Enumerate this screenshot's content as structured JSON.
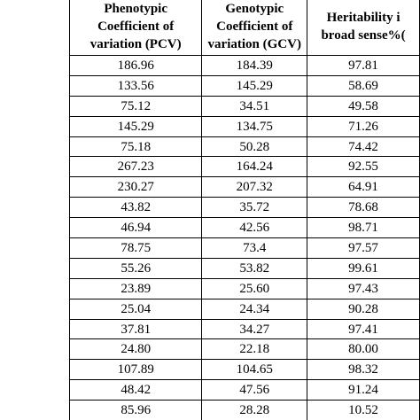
{
  "table": {
    "header": [
      [
        "Phenotypic",
        "Coefficient of",
        "variation (PCV)"
      ],
      [
        "Genotypic",
        "Coefficient of",
        "variation (GCV)"
      ],
      [
        "Heritability i",
        "broad sense%("
      ]
    ],
    "rows": [
      [
        "186.96",
        "184.39",
        "97.81"
      ],
      [
        "133.56",
        "145.29",
        "58.69"
      ],
      [
        "75.12",
        "34.51",
        "49.58"
      ],
      [
        "145.29",
        "134.75",
        "71.26"
      ],
      [
        "75.18",
        "50.28",
        "74.42"
      ],
      [
        "267.23",
        "164.24",
        "92.55"
      ],
      [
        "230.27",
        "207.32",
        "64.91"
      ],
      [
        "43.82",
        "35.72",
        "78.68"
      ],
      [
        "46.94",
        "42.56",
        "98.71"
      ],
      [
        "78.75",
        "73.4",
        "97.57"
      ],
      [
        "55.26",
        "53.82",
        "99.61"
      ],
      [
        "23.89",
        "25.60",
        "97.43"
      ],
      [
        "25.04",
        "24.34",
        "90.28"
      ],
      [
        "37.81",
        "34.27",
        "97.41"
      ],
      [
        "24.80",
        "22.18",
        "80.00"
      ],
      [
        "107.89",
        "104.65",
        "98.32"
      ],
      [
        "48.42",
        "47.56",
        "91.24"
      ],
      [
        "85.96",
        "28.28",
        "10.52"
      ]
    ]
  }
}
